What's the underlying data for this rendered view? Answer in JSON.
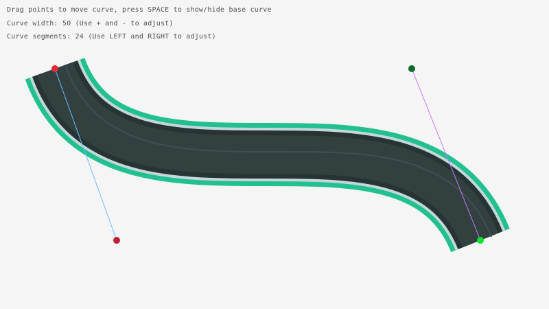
{
  "instructions": [
    "Drag points to move curve, press SPACE to show/hide base curve",
    "Curve width: 50 (Use + and - to adjust)",
    "Curve segments: 24 (Use LEFT and RIGHT to adjust)"
  ],
  "curve": {
    "width": 50,
    "segments": 24,
    "start_point_color": "#e62937",
    "start_control_color": "#be2130",
    "end_control_color": "#0a6a2a",
    "end_point_color": "#00e430",
    "start_handle_line_color": "#66bfff",
    "end_handle_line_color": "#c87aff",
    "edge_color": "#22c08e",
    "rim_color": "#c4d8dc",
    "road_color": "#324040"
  }
}
